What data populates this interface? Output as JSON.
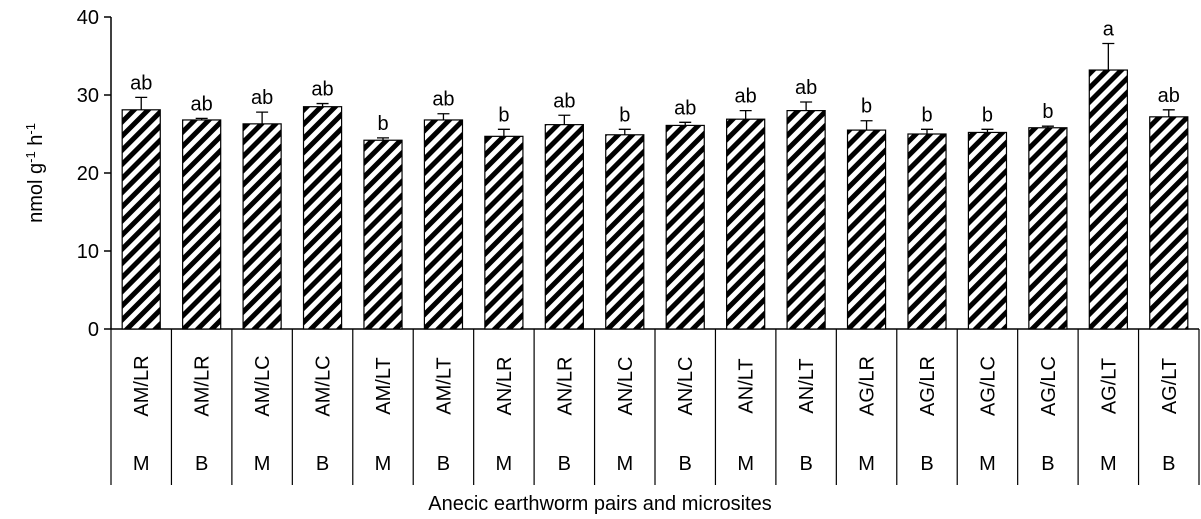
{
  "chart_data": {
    "type": "bar",
    "y_label": [
      "nmol g",
      "-1",
      " h",
      "-1"
    ],
    "x_label": "Anecic earthworm pairs and microsites",
    "categories": [
      "AM/LR",
      "AM/LR",
      "AM/LC",
      "AM/LC",
      "AM/LT",
      "AM/LT",
      "AN/LR",
      "AN/LR",
      "AN/LC",
      "AN/LC",
      "AN/LT",
      "AN/LT",
      "AG/LR",
      "AG/LR",
      "AG/LC",
      "AG/LC",
      "AG/LT",
      "AG/LT"
    ],
    "subcategories": [
      "M",
      "B",
      "M",
      "B",
      "M",
      "B",
      "M",
      "B",
      "M",
      "B",
      "M",
      "B",
      "M",
      "B",
      "M",
      "B",
      "M",
      "B"
    ],
    "values": [
      28.1,
      26.8,
      26.3,
      28.5,
      24.2,
      26.8,
      24.7,
      26.2,
      24.9,
      26.1,
      26.9,
      28.0,
      25.5,
      25.0,
      25.2,
      25.8,
      33.2,
      27.2
    ],
    "errors": [
      1.6,
      0.2,
      1.5,
      0.4,
      0.3,
      0.8,
      0.9,
      1.2,
      0.7,
      0.4,
      1.1,
      1.1,
      1.2,
      0.6,
      0.4,
      0.2,
      3.4,
      0.9
    ],
    "letters": [
      "ab",
      "ab",
      "ab",
      "ab",
      "b",
      "ab",
      "b",
      "ab",
      "b",
      "ab",
      "ab",
      "ab",
      "b",
      "b",
      "b",
      "b",
      "a",
      "ab"
    ],
    "color": "#000000",
    "ylim": [
      0,
      40
    ],
    "yticks": [
      0,
      10,
      20,
      30,
      40
    ]
  }
}
